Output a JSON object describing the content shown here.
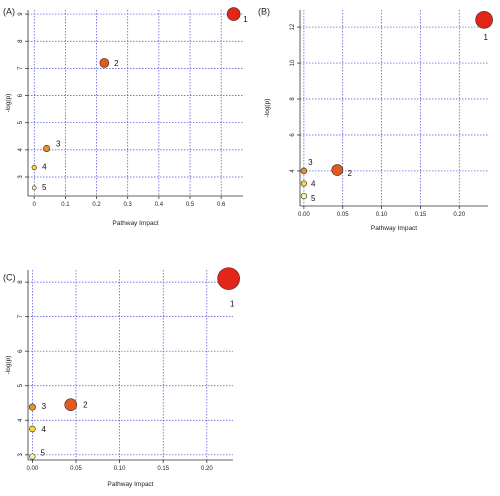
{
  "chart_data": [
    {
      "type": "scatter",
      "panel": "(A)",
      "xlabel": "Pathway Impact",
      "ylabel": "-log(p)",
      "xlim": [
        -0.02,
        0.67
      ],
      "ylim": [
        2.3,
        9.15
      ],
      "xticks": [
        0.0,
        0.1,
        0.2,
        0.3,
        0.4,
        0.5,
        0.6
      ],
      "xtick_labels": [
        "0",
        "0.1",
        "0.2",
        "0.3",
        "0.4",
        "0.5",
        "0.6"
      ],
      "yticks": [
        3,
        4,
        5,
        6,
        7,
        8,
        9
      ],
      "ytick_labels": [
        "3",
        "4",
        "5",
        "6",
        "7",
        "8",
        "9"
      ],
      "grid": true,
      "points": [
        {
          "label": "1",
          "x": 0.64,
          "y": 9.0,
          "r": 6.5,
          "color": "#e32619"
        },
        {
          "label": "2",
          "x": 0.225,
          "y": 7.2,
          "r": 4.5,
          "color": "#e35a20"
        },
        {
          "label": "3",
          "x": 0.04,
          "y": 4.05,
          "r": 3.2,
          "color": "#e8902a"
        },
        {
          "label": "4",
          "x": 0.0,
          "y": 3.35,
          "r": 2.3,
          "color": "#f3d83a"
        },
        {
          "label": "5",
          "x": 0.0,
          "y": 2.6,
          "r": 2.0,
          "color": "#f8f4aa"
        }
      ]
    },
    {
      "type": "scatter",
      "panel": "(B)",
      "xlabel": "Pathway Impact",
      "ylabel": "-log(p)",
      "xlim": [
        -0.005,
        0.237
      ],
      "ylim": [
        2.05,
        12.95
      ],
      "xticks": [
        0.0,
        0.05,
        0.1,
        0.15,
        0.2
      ],
      "xtick_labels": [
        "0.00",
        "0.05",
        "0.10",
        "0.15",
        "0.20"
      ],
      "yticks": [
        4,
        6,
        8,
        10,
        12
      ],
      "ytick_labels": [
        "4",
        "6",
        "8",
        "10",
        "12"
      ],
      "grid": true,
      "points": [
        {
          "label": "1",
          "x": 0.232,
          "y": 12.4,
          "r": 8.5,
          "color": "#e32619"
        },
        {
          "label": "2",
          "x": 0.043,
          "y": 4.05,
          "r": 5.5,
          "color": "#e35a20"
        },
        {
          "label": "3",
          "x": 0.0,
          "y": 4.0,
          "r": 3.0,
          "color": "#e8902a"
        },
        {
          "label": "4",
          "x": 0.0,
          "y": 3.3,
          "r": 2.8,
          "color": "#f3d83a"
        },
        {
          "label": "5",
          "x": 0.0,
          "y": 2.6,
          "r": 2.8,
          "color": "#f8f4aa"
        }
      ]
    },
    {
      "type": "scatter",
      "panel": "(C)",
      "xlabel": "Pathway Impact",
      "ylabel": "-log(p)",
      "xlim": [
        -0.005,
        0.23
      ],
      "ylim": [
        2.85,
        8.35
      ],
      "xticks": [
        0.0,
        0.05,
        0.1,
        0.15,
        0.2
      ],
      "xtick_labels": [
        "0.00",
        "0.05",
        "0.10",
        "0.15",
        "0.20"
      ],
      "yticks": [
        3,
        4,
        5,
        6,
        7,
        8
      ],
      "ytick_labels": [
        "3",
        "4",
        "5",
        "6",
        "7",
        "8"
      ],
      "grid": true,
      "points": [
        {
          "label": "1",
          "x": 0.225,
          "y": 8.1,
          "r": 11,
          "color": "#e32619"
        },
        {
          "label": "2",
          "x": 0.044,
          "y": 4.45,
          "r": 6,
          "color": "#e35a20"
        },
        {
          "label": "3",
          "x": 0.0,
          "y": 4.38,
          "r": 3.2,
          "color": "#e8902a"
        },
        {
          "label": "4",
          "x": 0.0,
          "y": 3.75,
          "r": 3.0,
          "color": "#f3d83a"
        },
        {
          "label": "5",
          "x": 0.0,
          "y": 2.95,
          "r": 2.8,
          "color": "#f8f4aa"
        }
      ]
    }
  ]
}
